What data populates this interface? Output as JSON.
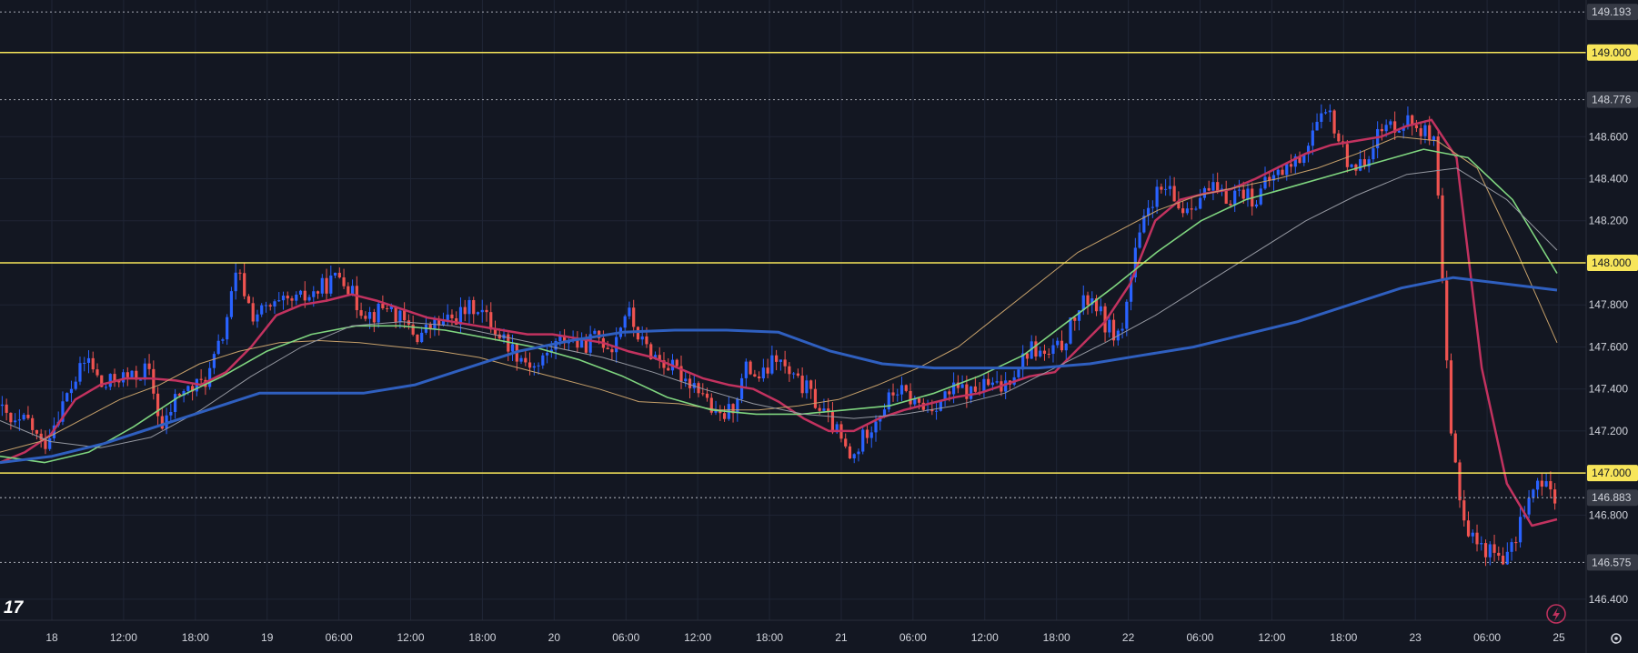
{
  "chart_data": {
    "type": "candlestick",
    "x_tick_labels": [
      "18",
      "12:00",
      "18:00",
      "19",
      "06:00",
      "12:00",
      "18:00",
      "20",
      "06:00",
      "12:00",
      "18:00",
      "21",
      "06:00",
      "12:00",
      "18:00",
      "22",
      "06:00",
      "12:00",
      "18:00",
      "23",
      "06:00",
      "25"
    ],
    "y_tick_labels": [
      "148.600",
      "148.400",
      "148.200",
      "147.800",
      "147.600",
      "147.400",
      "147.200",
      "146.800",
      "146.400"
    ],
    "ylim": [
      146.3,
      149.25
    ],
    "grid": true,
    "levels": [
      {
        "label": "149.000",
        "value": 149.0,
        "style": "solid",
        "color": "#f7e55a"
      },
      {
        "label": "148.000",
        "value": 148.0,
        "style": "solid",
        "color": "#f7e55a"
      },
      {
        "label": "147.000",
        "value": 147.0,
        "style": "solid",
        "color": "#f7e55a"
      },
      {
        "label": "149.193",
        "value": 149.193,
        "style": "dotted",
        "color": "#9598a1"
      },
      {
        "label": "148.776",
        "value": 148.776,
        "style": "dotted",
        "color": "#9598a1"
      },
      {
        "label": "146.883",
        "value": 146.883,
        "style": "dotted",
        "color": "#9598a1"
      },
      {
        "label": "146.575",
        "value": 146.575,
        "style": "dotted",
        "color": "#9598a1"
      }
    ],
    "price_path": [
      147.32,
      147.22,
      147.25,
      147.12,
      147.28,
      147.42,
      147.55,
      147.4,
      147.46,
      147.45,
      147.5,
      147.2,
      147.38,
      147.4,
      147.45,
      147.65,
      147.96,
      147.75,
      147.78,
      147.8,
      147.82,
      147.85,
      147.9,
      147.95,
      147.8,
      147.75,
      147.8,
      147.72,
      147.65,
      147.7,
      147.72,
      147.76,
      147.8,
      147.7,
      147.62,
      147.55,
      147.5,
      147.6,
      147.65,
      147.6,
      147.65,
      147.6,
      147.78,
      147.62,
      147.55,
      147.5,
      147.45,
      147.4,
      147.25,
      147.3,
      147.5,
      147.45,
      147.55,
      147.45,
      147.4,
      147.3,
      147.2,
      147.05,
      147.2,
      147.3,
      147.4,
      147.35,
      147.3,
      147.35,
      147.4,
      147.38,
      147.42,
      147.4,
      147.5,
      147.6,
      147.55,
      147.6,
      147.75,
      147.85,
      147.7,
      147.65,
      148.05,
      148.3,
      148.35,
      148.25,
      148.3,
      148.35,
      148.3,
      148.35,
      148.3,
      148.4,
      148.45,
      148.5,
      148.65,
      148.7,
      148.5,
      148.45,
      148.6,
      148.65,
      148.68,
      148.65,
      148.55,
      147.2,
      146.75,
      146.65,
      146.62,
      146.6,
      146.85,
      146.95,
      146.9
    ],
    "series": [
      {
        "name": "",
        "color": "#c2325f",
        "values": [
          147.05,
          147.1,
          147.18,
          147.35,
          147.42,
          147.45,
          147.45,
          147.44,
          147.42,
          147.48,
          147.6,
          147.75,
          147.8,
          147.82,
          147.85,
          147.82,
          147.78,
          147.74,
          147.72,
          147.7,
          147.68,
          147.66,
          147.66,
          147.64,
          147.62,
          147.58,
          147.55,
          147.5,
          147.45,
          147.42,
          147.4,
          147.34,
          147.26,
          147.2,
          147.2,
          147.26,
          147.3,
          147.33,
          147.36,
          147.38,
          147.42,
          147.46,
          147.48,
          147.6,
          147.72,
          147.9,
          148.2,
          148.3,
          148.33,
          148.35,
          148.4,
          148.46,
          148.52,
          148.56,
          148.58,
          148.6,
          148.65,
          148.68,
          148.5,
          147.5,
          146.95,
          146.75,
          146.78
        ]
      },
      {
        "name": "",
        "color": "#c6a06a",
        "values": [
          147.1,
          147.15,
          147.25,
          147.35,
          147.42,
          147.52,
          147.58,
          147.62,
          147.63,
          147.62,
          147.6,
          147.58,
          147.55,
          147.5,
          147.45,
          147.4,
          147.34,
          147.33,
          147.3,
          147.3,
          147.32,
          147.35,
          147.42,
          147.5,
          147.6,
          147.75,
          147.9,
          148.05,
          148.15,
          148.25,
          148.32,
          148.36,
          148.4,
          148.45,
          148.52,
          148.6,
          148.58,
          148.45,
          148.05,
          147.62
        ]
      },
      {
        "name": "",
        "color": "#7fd57f",
        "values": [
          147.08,
          147.05,
          147.1,
          147.22,
          147.36,
          147.46,
          147.58,
          147.66,
          147.7,
          147.7,
          147.68,
          147.64,
          147.6,
          147.54,
          147.46,
          147.36,
          147.3,
          147.28,
          147.28,
          147.3,
          147.32,
          147.38,
          147.46,
          147.56,
          147.72,
          147.88,
          148.05,
          148.2,
          148.3,
          148.36,
          148.42,
          148.48,
          148.54,
          148.5,
          148.3,
          147.95
        ]
      },
      {
        "name": "",
        "color": "#9598a1",
        "values": [
          147.25,
          147.15,
          147.12,
          147.17,
          147.3,
          147.46,
          147.6,
          147.7,
          147.72,
          147.7,
          147.65,
          147.6,
          147.55,
          147.48,
          147.4,
          147.33,
          147.28,
          147.26,
          147.28,
          147.32,
          147.38,
          147.5,
          147.62,
          147.75,
          147.9,
          148.05,
          148.2,
          148.32,
          148.42,
          148.45,
          148.3,
          148.06
        ]
      },
      {
        "name": "",
        "color": "#2f5fbf",
        "values": [
          147.05,
          147.08,
          147.14,
          147.22,
          147.3,
          147.38,
          147.38,
          147.38,
          147.42,
          147.5,
          147.58,
          147.63,
          147.67,
          147.68,
          147.68,
          147.67,
          147.58,
          147.52,
          147.5,
          147.5,
          147.5,
          147.52,
          147.56,
          147.6,
          147.66,
          147.72,
          147.8,
          147.88,
          147.93,
          147.9,
          147.87
        ]
      }
    ]
  },
  "brand": {
    "logo_text": "17"
  },
  "icons": {
    "flash": "lightning-circle-icon",
    "settings": "gear-icon"
  },
  "colors": {
    "up": "#2962ff",
    "down": "#ef5350",
    "level": "#f7e55a",
    "grid": "#1f2535",
    "bg": "#131722"
  }
}
